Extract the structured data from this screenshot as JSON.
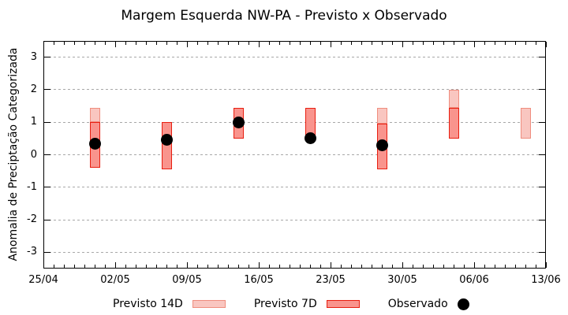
{
  "chart_data": {
    "type": "bar",
    "title": "Margem Esquerda NW-PA - Previsto x Observado",
    "xlabel": "",
    "ylabel": "Anomalia de Preciptação Categorizada",
    "ylim": [
      -3.5,
      3.5
    ],
    "ytick_values": [
      3,
      2,
      1,
      0,
      -1,
      -2,
      -3
    ],
    "grid": true,
    "x_axis": {
      "tick_labels": [
        "25/04",
        "02/05",
        "09/05",
        "16/05",
        "23/05",
        "30/05",
        "06/06",
        "13/06"
      ],
      "tick_days": [
        0,
        7,
        14,
        21,
        28,
        35,
        42,
        49
      ],
      "total_days": 49,
      "minor_tick_every_days": 1
    },
    "series": [
      {
        "name": "Previsto 14D",
        "type": "range-bar"
      },
      {
        "name": "Previsto 7D",
        "type": "range-bar"
      },
      {
        "name": "Observado",
        "type": "point"
      }
    ],
    "groups": [
      {
        "date": "30/04",
        "day": 5,
        "previsto_14d": [
          1.0,
          1.45
        ],
        "previsto_7d": [
          -0.4,
          1.0
        ],
        "observado": 0.35
      },
      {
        "date": "07/05",
        "day": 12,
        "previsto_14d": null,
        "previsto_7d": [
          -0.45,
          1.0
        ],
        "observado": 0.45
      },
      {
        "date": "14/05",
        "day": 19,
        "previsto_14d": null,
        "previsto_7d": [
          0.5,
          1.45
        ],
        "observado": 1.0
      },
      {
        "date": "21/05",
        "day": 26,
        "previsto_14d": null,
        "previsto_7d": [
          0.55,
          1.45
        ],
        "observado": 0.5
      },
      {
        "date": "28/05",
        "day": 33,
        "previsto_14d": [
          0.95,
          1.45
        ],
        "previsto_7d": [
          -0.45,
          0.95
        ],
        "observado": 0.3
      },
      {
        "date": "04/06",
        "day": 40,
        "previsto_14d": [
          1.45,
          2.0
        ],
        "previsto_7d": [
          0.5,
          1.45
        ],
        "observado": null
      },
      {
        "date": "11/06",
        "day": 47,
        "previsto_14d": [
          0.5,
          1.45
        ],
        "previsto_7d": null,
        "observado": null
      }
    ],
    "legend": {
      "position": "bottom",
      "items": [
        {
          "label": "Previsto 14D",
          "swatch": "bar-light"
        },
        {
          "label": "Previsto 7D",
          "swatch": "bar-dark"
        },
        {
          "label": "Observado",
          "swatch": "dot"
        }
      ]
    },
    "colors": {
      "p14_fill": "#f9c6c0",
      "p14_border": "#ef8d7e",
      "p7_fill": "#f9948d",
      "p7_border": "#e81e10",
      "observed": "#000000",
      "grid": "#a8a8a8",
      "frame": "#000000"
    }
  }
}
